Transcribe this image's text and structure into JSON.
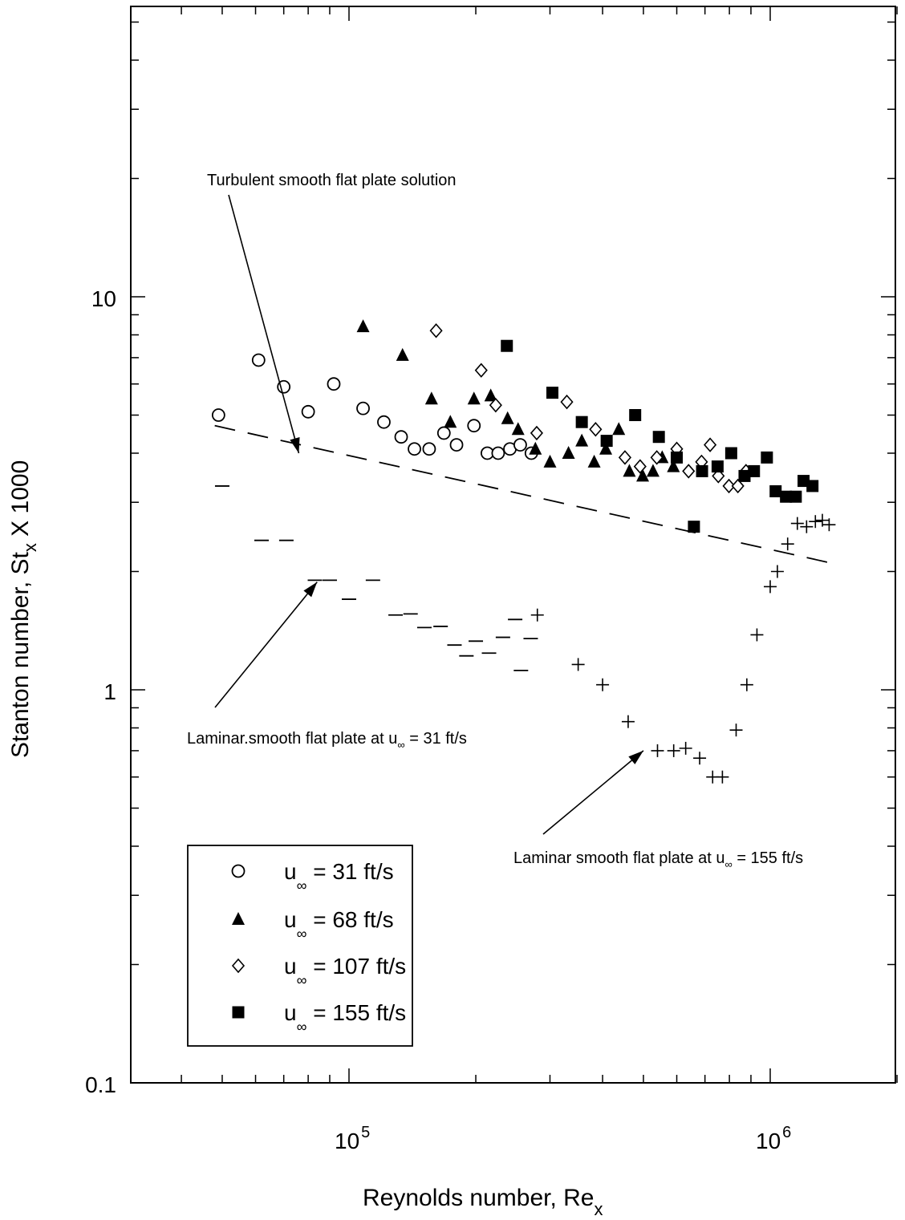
{
  "chart_data": {
    "type": "scatter",
    "xscale": "log",
    "yscale": "log",
    "xlim": [
      40000,
      2000000
    ],
    "ylim": [
      0.1,
      50
    ],
    "xticks": [
      {
        "value": 100000,
        "base": "10",
        "exp": "5"
      },
      {
        "value": 1000000,
        "base": "10",
        "exp": "6"
      }
    ],
    "yticks": [
      {
        "value": 0.1,
        "label": "0.1"
      },
      {
        "value": 1,
        "label": "1"
      },
      {
        "value": 10,
        "label": "10"
      }
    ],
    "xlabel": {
      "main": "Reynolds number, Re",
      "sub": "x"
    },
    "ylabel": {
      "main": "Stanton number, St",
      "sub": "x",
      "suffix": " X 1000"
    },
    "grid": false,
    "legend_position": "bottom-left",
    "series": [
      {
        "name": "u∞ = 31 ft/s",
        "legend": {
          "u": "u",
          "sub": "∞",
          "rest": " = 31 ft/s"
        },
        "marker": "open-circle",
        "points": [
          [
            49000,
            5.0
          ],
          [
            61000,
            6.9
          ],
          [
            70000,
            5.9
          ],
          [
            80000,
            5.1
          ],
          [
            92000,
            6.0
          ],
          [
            108000,
            5.2
          ],
          [
            121000,
            4.8
          ],
          [
            133000,
            4.4
          ],
          [
            143000,
            4.1
          ],
          [
            155000,
            4.1
          ],
          [
            168000,
            4.5
          ],
          [
            180000,
            4.2
          ],
          [
            198000,
            4.7
          ],
          [
            213000,
            4.0
          ],
          [
            226000,
            4.0
          ],
          [
            241000,
            4.1
          ],
          [
            255000,
            4.2
          ],
          [
            271000,
            4.0
          ]
        ]
      },
      {
        "name": "u∞ = 68 ft/s",
        "legend": {
          "u": "u",
          "sub": "∞",
          "rest": " = 68 ft/s"
        },
        "marker": "filled-triangle",
        "points": [
          [
            108000,
            8.4
          ],
          [
            134000,
            7.1
          ],
          [
            157000,
            5.5
          ],
          [
            174000,
            4.8
          ],
          [
            198000,
            5.5
          ],
          [
            217000,
            5.6
          ],
          [
            238000,
            4.9
          ],
          [
            252000,
            4.6
          ],
          [
            277000,
            4.1
          ],
          [
            300000,
            3.8
          ],
          [
            332000,
            4.0
          ],
          [
            357000,
            4.3
          ],
          [
            382000,
            3.8
          ],
          [
            407000,
            4.1
          ],
          [
            437000,
            4.6
          ],
          [
            463000,
            3.6
          ],
          [
            498000,
            3.5
          ],
          [
            527000,
            3.6
          ],
          [
            554000,
            3.9
          ],
          [
            589000,
            3.7
          ]
        ]
      },
      {
        "name": "u∞ = 107 ft/s",
        "legend": {
          "u": "u",
          "sub": "∞",
          "rest": " = 107 ft/s"
        },
        "marker": "open-diamond",
        "points": [
          [
            161000,
            8.2
          ],
          [
            206000,
            6.5
          ],
          [
            223000,
            5.3
          ],
          [
            279000,
            4.5
          ],
          [
            329000,
            5.4
          ],
          [
            385000,
            4.6
          ],
          [
            452000,
            3.9
          ],
          [
            491000,
            3.7
          ],
          [
            538000,
            3.9
          ],
          [
            600000,
            4.1
          ],
          [
            640000,
            3.6
          ],
          [
            687000,
            3.8
          ],
          [
            720000,
            4.2
          ],
          [
            753000,
            3.5
          ],
          [
            798000,
            3.3
          ],
          [
            838000,
            3.3
          ],
          [
            876000,
            3.6
          ]
        ]
      },
      {
        "name": "u∞ = 155 ft/s",
        "legend": {
          "u": "u",
          "sub": "∞",
          "rest": " = 155 ft/s"
        },
        "marker": "filled-square",
        "points": [
          [
            237000,
            7.5
          ],
          [
            304000,
            5.7
          ],
          [
            357000,
            4.8
          ],
          [
            409000,
            4.3
          ],
          [
            478000,
            5.0
          ],
          [
            544000,
            4.4
          ],
          [
            600000,
            3.9
          ],
          [
            659000,
            2.6
          ],
          [
            689000,
            3.6
          ],
          [
            750000,
            3.7
          ],
          [
            808000,
            4.0
          ],
          [
            869000,
            3.5
          ],
          [
            915000,
            3.6
          ],
          [
            982000,
            3.9
          ],
          [
            1030000,
            3.2
          ],
          [
            1090000,
            3.1
          ],
          [
            1150000,
            3.1
          ],
          [
            1200000,
            3.4
          ],
          [
            1260000,
            3.3
          ]
        ]
      }
    ],
    "laminar_31_marks": [
      [
        50000,
        3.3
      ],
      [
        62000,
        2.4
      ],
      [
        71000,
        2.4
      ],
      [
        83000,
        1.9
      ],
      [
        90000,
        1.9
      ],
      [
        100000,
        1.7
      ],
      [
        114000,
        1.9
      ],
      [
        129000,
        1.55
      ],
      [
        140000,
        1.56
      ],
      [
        151000,
        1.44
      ],
      [
        165000,
        1.45
      ],
      [
        178000,
        1.3
      ],
      [
        190000,
        1.22
      ],
      [
        200000,
        1.33
      ],
      [
        215000,
        1.24
      ],
      [
        232000,
        1.36
      ],
      [
        248000,
        1.51
      ],
      [
        256000,
        1.12
      ],
      [
        270000,
        1.35
      ]
    ],
    "laminar_155_marks": [
      [
        280000,
        1.55
      ],
      [
        350000,
        1.16
      ],
      [
        400000,
        1.03
      ],
      [
        460000,
        0.83
      ],
      [
        540000,
        0.7
      ],
      [
        590000,
        0.7
      ],
      [
        630000,
        0.71
      ],
      [
        680000,
        0.67
      ],
      [
        730000,
        0.6
      ],
      [
        770000,
        0.6
      ],
      [
        830000,
        0.79
      ],
      [
        880000,
        1.03
      ],
      [
        930000,
        1.38
      ],
      [
        1000000,
        1.83
      ],
      [
        1040000,
        2.0
      ],
      [
        1100000,
        2.35
      ],
      [
        1160000,
        2.65
      ],
      [
        1220000,
        2.6
      ],
      [
        1280000,
        2.68
      ],
      [
        1330000,
        2.7
      ],
      [
        1380000,
        2.63
      ]
    ],
    "turbulent_line": {
      "x": [
        48000,
        1400000
      ],
      "y": [
        4.7,
        2.1
      ]
    },
    "annotations": [
      {
        "text": "Turbulent smooth flat plate solution",
        "arrow_to": [
          76000,
          4.0
        ]
      },
      {
        "laminar": true,
        "text_pre": "Laminar.smooth flat plate at u",
        "sub": "∞",
        "text_post": " = 31 ft/s",
        "arrow_to": [
          84000,
          1.88
        ]
      },
      {
        "laminar": true,
        "text_pre": "Laminar smooth flat plate at u",
        "sub": "∞",
        "text_post": " = 155 ft/s",
        "arrow_to": [
          500000,
          0.7
        ]
      }
    ]
  }
}
